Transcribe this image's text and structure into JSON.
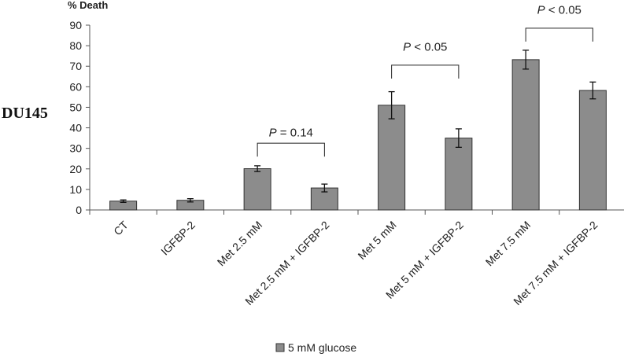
{
  "side_label": "DU145",
  "chart_data": {
    "type": "bar",
    "ylabel": "% Death",
    "ylim": [
      0,
      90
    ],
    "yticks": [
      "0",
      "10",
      "20",
      "30",
      "40",
      "50",
      "60",
      "70",
      "80",
      "90"
    ],
    "categories": [
      "CT",
      "IGFBP-2",
      "Met 2.5 mM",
      "Met 2.5 mM + IGFBP-2",
      "Met 5 mM",
      "Met 5 mM + IGFBP-2",
      "Met 7.5 mM",
      "Met 7.5 mM + IGFBP-2"
    ],
    "series": [
      {
        "name": "5 mM glucose",
        "color": "#8c8c8c",
        "values": [
          4.3,
          4.7,
          20.1,
          10.7,
          51.0,
          35.0,
          73.2,
          58.2
        ],
        "errors": [
          0.6,
          0.8,
          1.4,
          1.9,
          6.6,
          4.5,
          4.6,
          4.1
        ]
      }
    ],
    "annotations": [
      {
        "p_label": "P",
        "text": " = 0.14",
        "from": 2,
        "to": 3,
        "bracket_y": 32.5,
        "text_y": 35.8
      },
      {
        "p_label": "P",
        "text": " < 0.05",
        "from": 4,
        "to": 5,
        "bracket_y": 70.5,
        "text_y": 77.5
      },
      {
        "p_label": "P",
        "text": " < 0.05",
        "from": 6,
        "to": 7,
        "bracket_y": 88.5,
        "text_y": 95.6
      }
    ],
    "legend": {
      "position": "bottom",
      "label": "5 mM glucose"
    },
    "grid": false
  }
}
